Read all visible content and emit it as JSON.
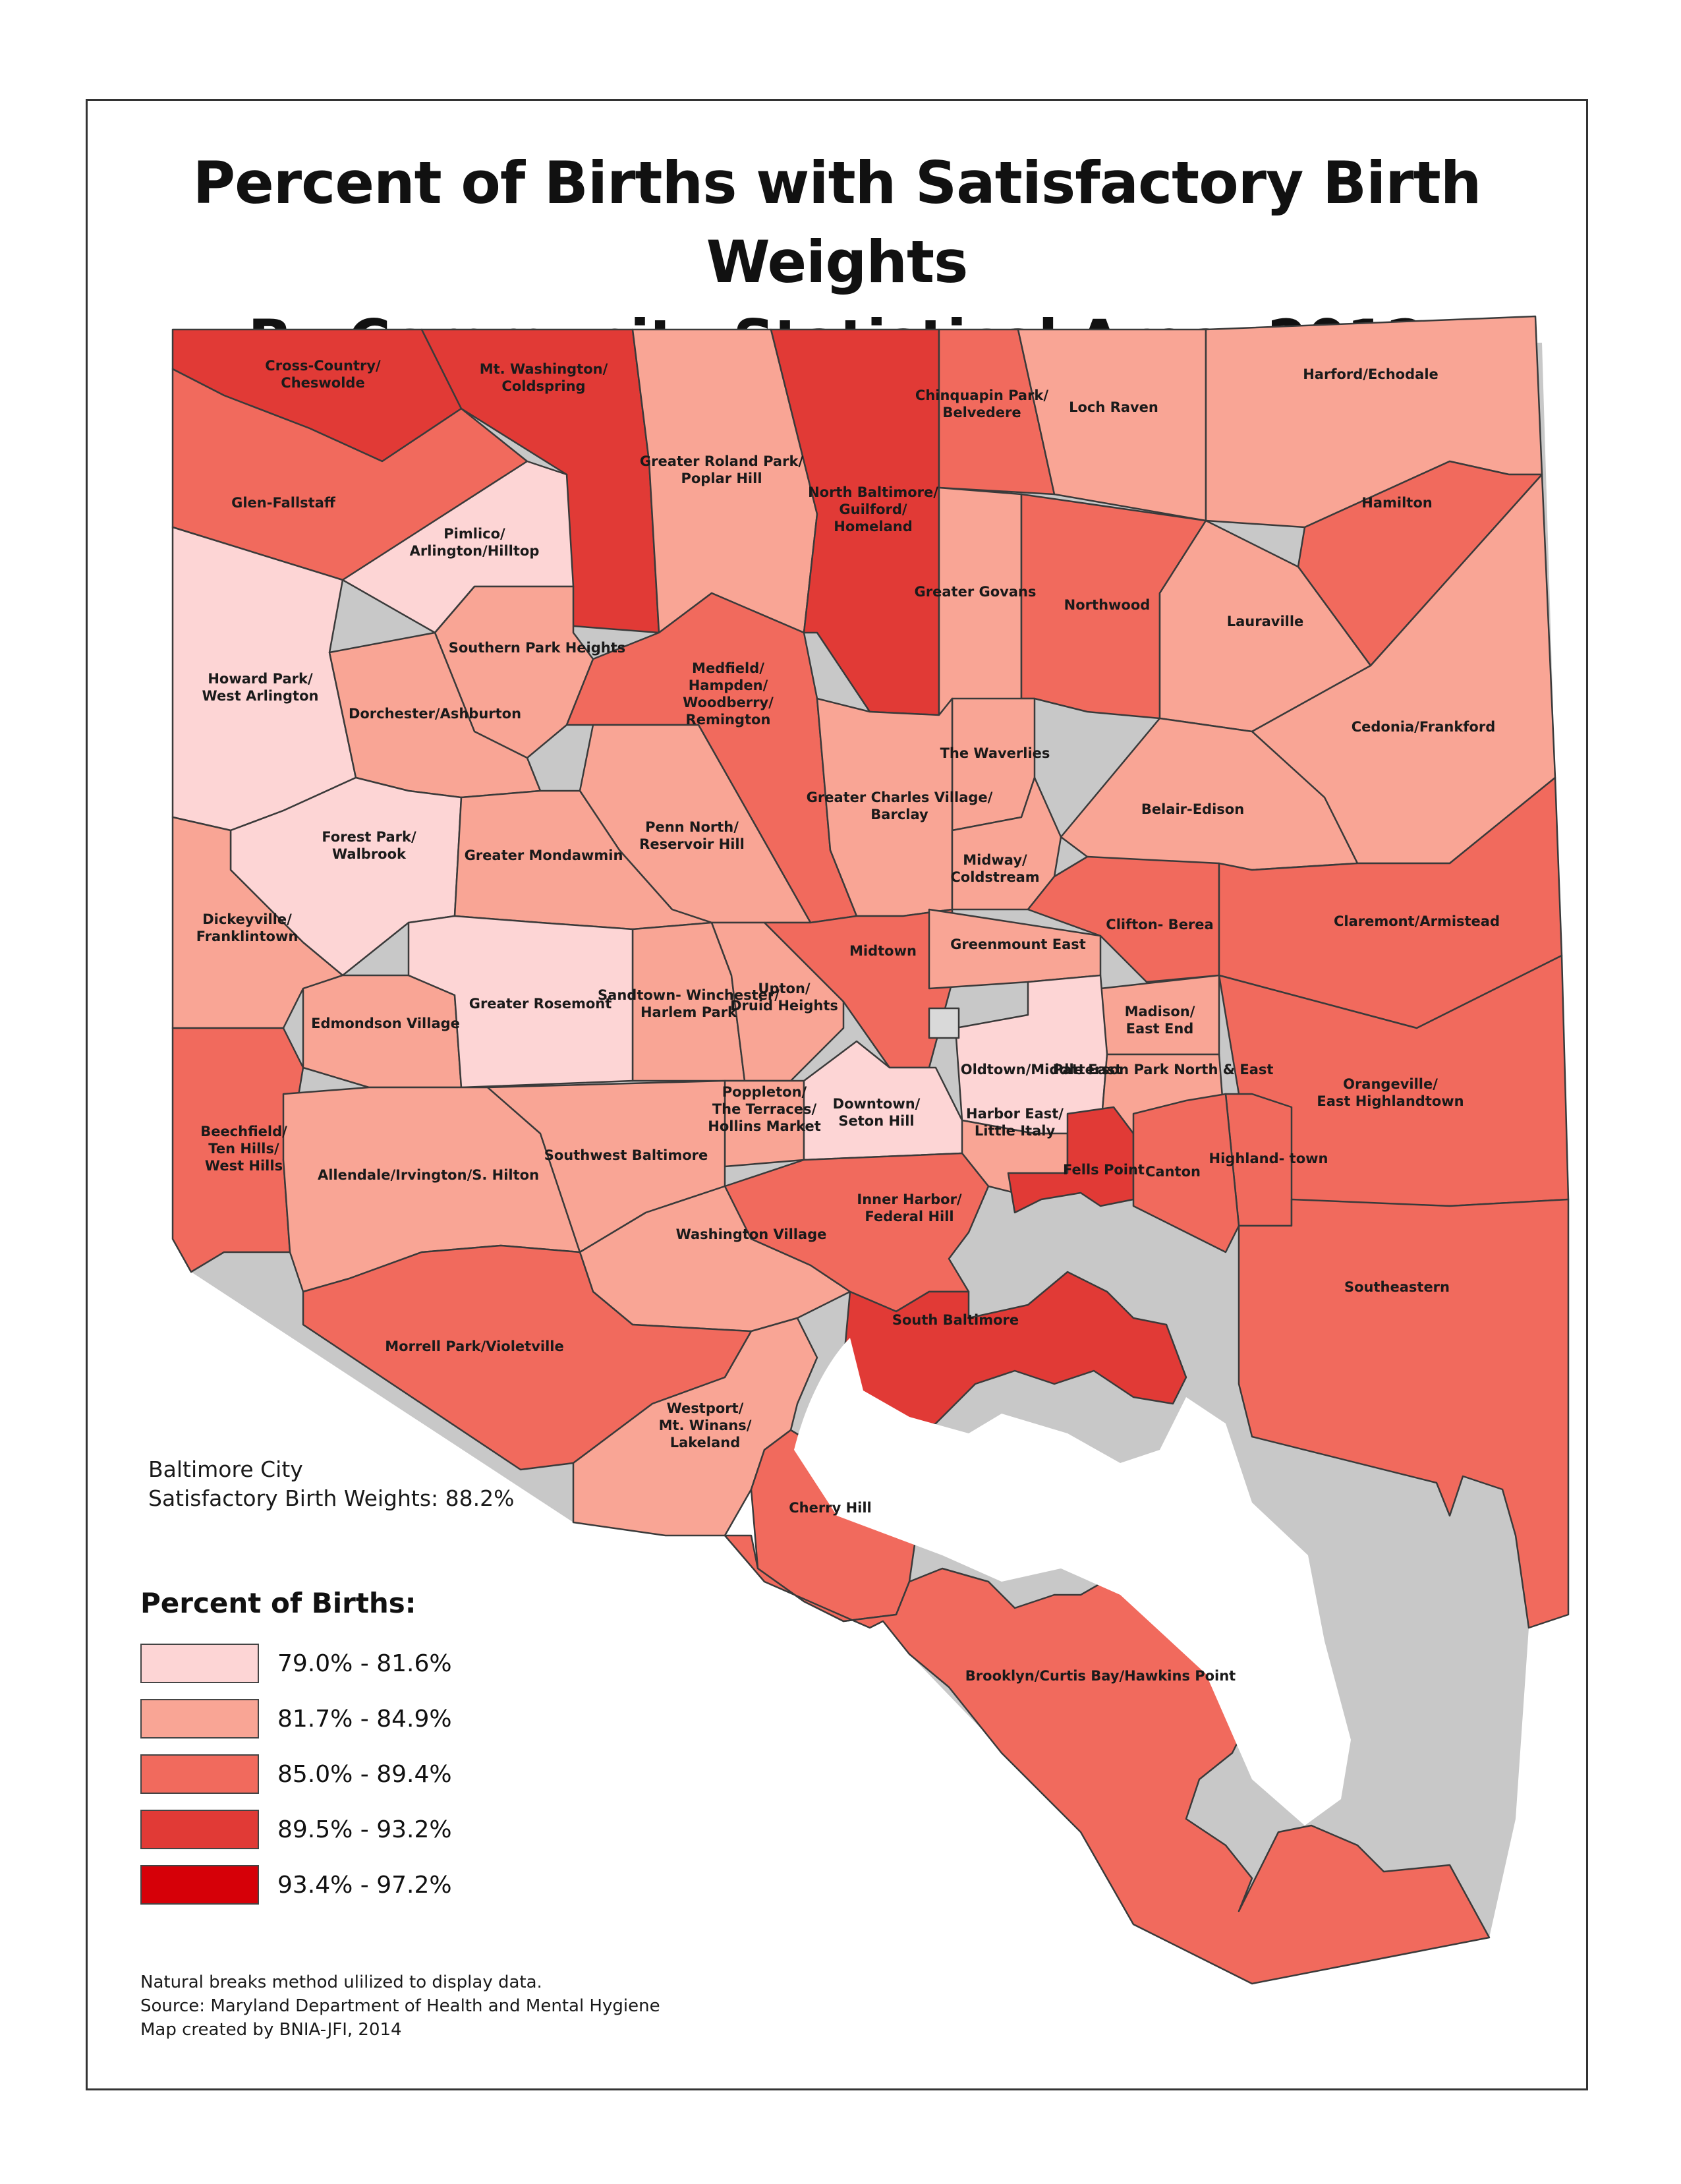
{
  "title_lines": [
    "Percent of Births with Satisfactory Birth Weights",
    "By Community Statistical Area, 2012"
  ],
  "summary": {
    "area": "Baltimore City",
    "stat": "Satisfactory Birth Weights: 88.2%"
  },
  "legend": {
    "title": "Percent of Births:",
    "classes": [
      {
        "label": "79.0% - 81.6%",
        "color": "#fdd5d5"
      },
      {
        "label": "81.7% - 84.9%",
        "color": "#f9a595"
      },
      {
        "label": "85.0% - 89.4%",
        "color": "#f16a5d"
      },
      {
        "label": "89.5% - 93.2%",
        "color": "#e13a36"
      },
      {
        "label": "93.4% - 97.2%",
        "color": "#d60008"
      }
    ]
  },
  "footnotes": [
    "Natural breaks method ulilized to display data.",
    "Source: Maryland Department of Health and Mental Hygiene",
    "Map created by BNIA-JFI, 2014"
  ],
  "colors": {
    "no_data": "#d9d9d9",
    "water_shadow": "#c8c8c8",
    "frame": "#333333"
  },
  "areas": [
    {
      "name": "Cross-Country/ Cheswolde",
      "class": 3
    },
    {
      "name": "Mt. Washington/ Coldspring",
      "class": 3
    },
    {
      "name": "Greater Roland Park/ Poplar Hill",
      "class": 1
    },
    {
      "name": "North Baltimore/ Guilford/ Homeland",
      "class": 3
    },
    {
      "name": "Chinquapin Park/ Belvedere",
      "class": 2
    },
    {
      "name": "Loch Raven",
      "class": 1
    },
    {
      "name": "Harford/Echodale",
      "class": 1
    },
    {
      "name": "Glen-Fallstaff",
      "class": 2
    },
    {
      "name": "Pimlico/ Arlington/Hilltop",
      "class": 0
    },
    {
      "name": "Hamilton",
      "class": 2
    },
    {
      "name": "Greater Govans",
      "class": 1
    },
    {
      "name": "Northwood",
      "class": 2
    },
    {
      "name": "Lauraville",
      "class": 1
    },
    {
      "name": "Howard Park/ West Arlington",
      "class": 0
    },
    {
      "name": "Southern Park Heights",
      "class": 1
    },
    {
      "name": "Medfield/ Hampden/ Woodberry/ Remington",
      "class": 2
    },
    {
      "name": "Dorchester/Ashburton",
      "class": 1
    },
    {
      "name": "Cedonia/Frankford",
      "class": 1
    },
    {
      "name": "The Waverlies",
      "class": 1
    },
    {
      "name": "Greater Charles Village/ Barclay",
      "class": 1
    },
    {
      "name": "Belair-Edison",
      "class": 1
    },
    {
      "name": "Forest Park/ Walbrook",
      "class": 0
    },
    {
      "name": "Penn North/ Reservoir Hill",
      "class": 1
    },
    {
      "name": "Greater Mondawmin",
      "class": 1
    },
    {
      "name": "Midway/ Coldstream",
      "class": 1
    },
    {
      "name": "Clifton- Berea",
      "class": 2
    },
    {
      "name": "Claremont/Armistead",
      "class": 2
    },
    {
      "name": "Dickeyville/ Franklintown",
      "class": 1
    },
    {
      "name": "Midtown",
      "class": 2
    },
    {
      "name": "Greenmount East",
      "class": 1
    },
    {
      "name": "Sandtown- Winchester/ Harlem Park",
      "class": 1
    },
    {
      "name": "Upton/ Druid Heights",
      "class": 1
    },
    {
      "name": "Edmondson Village",
      "class": 1
    },
    {
      "name": "Greater Rosemont",
      "class": 0
    },
    {
      "name": "Madison/ East End",
      "class": 1
    },
    {
      "name": "Oldtown/Middle East",
      "class": 0
    },
    {
      "name": "Patterson Park North & East",
      "class": 1
    },
    {
      "name": "Orangeville/ East Highlandtown",
      "class": 2
    },
    {
      "name": "Poppleton/ The Terraces/ Hollins Market",
      "class": 1
    },
    {
      "name": "Downtown/ Seton Hill",
      "class": 0
    },
    {
      "name": "Harbor East/ Little Italy",
      "class": 1
    },
    {
      "name": "Beechfield/ Ten Hills/ West Hills",
      "class": 2
    },
    {
      "name": "Allendale/Irvington/S. Hilton",
      "class": 1
    },
    {
      "name": "Southwest Baltimore",
      "class": 1
    },
    {
      "name": "Highland- town",
      "class": 2
    },
    {
      "name": "Fells Point",
      "class": 3
    },
    {
      "name": "Canton",
      "class": 2
    },
    {
      "name": "Inner Harbor/ Federal Hill",
      "class": 2
    },
    {
      "name": "Washington Village",
      "class": 1
    },
    {
      "name": "Southeastern",
      "class": 2
    },
    {
      "name": "South Baltimore",
      "class": 3
    },
    {
      "name": "Morrell Park/Violetville",
      "class": 2
    },
    {
      "name": "Westport/ Mt. Winans/ Lakeland",
      "class": 1
    },
    {
      "name": "Cherry Hill",
      "class": 2
    },
    {
      "name": "Brooklyn/Curtis Bay/Hawkins Point",
      "class": 2
    }
  ]
}
